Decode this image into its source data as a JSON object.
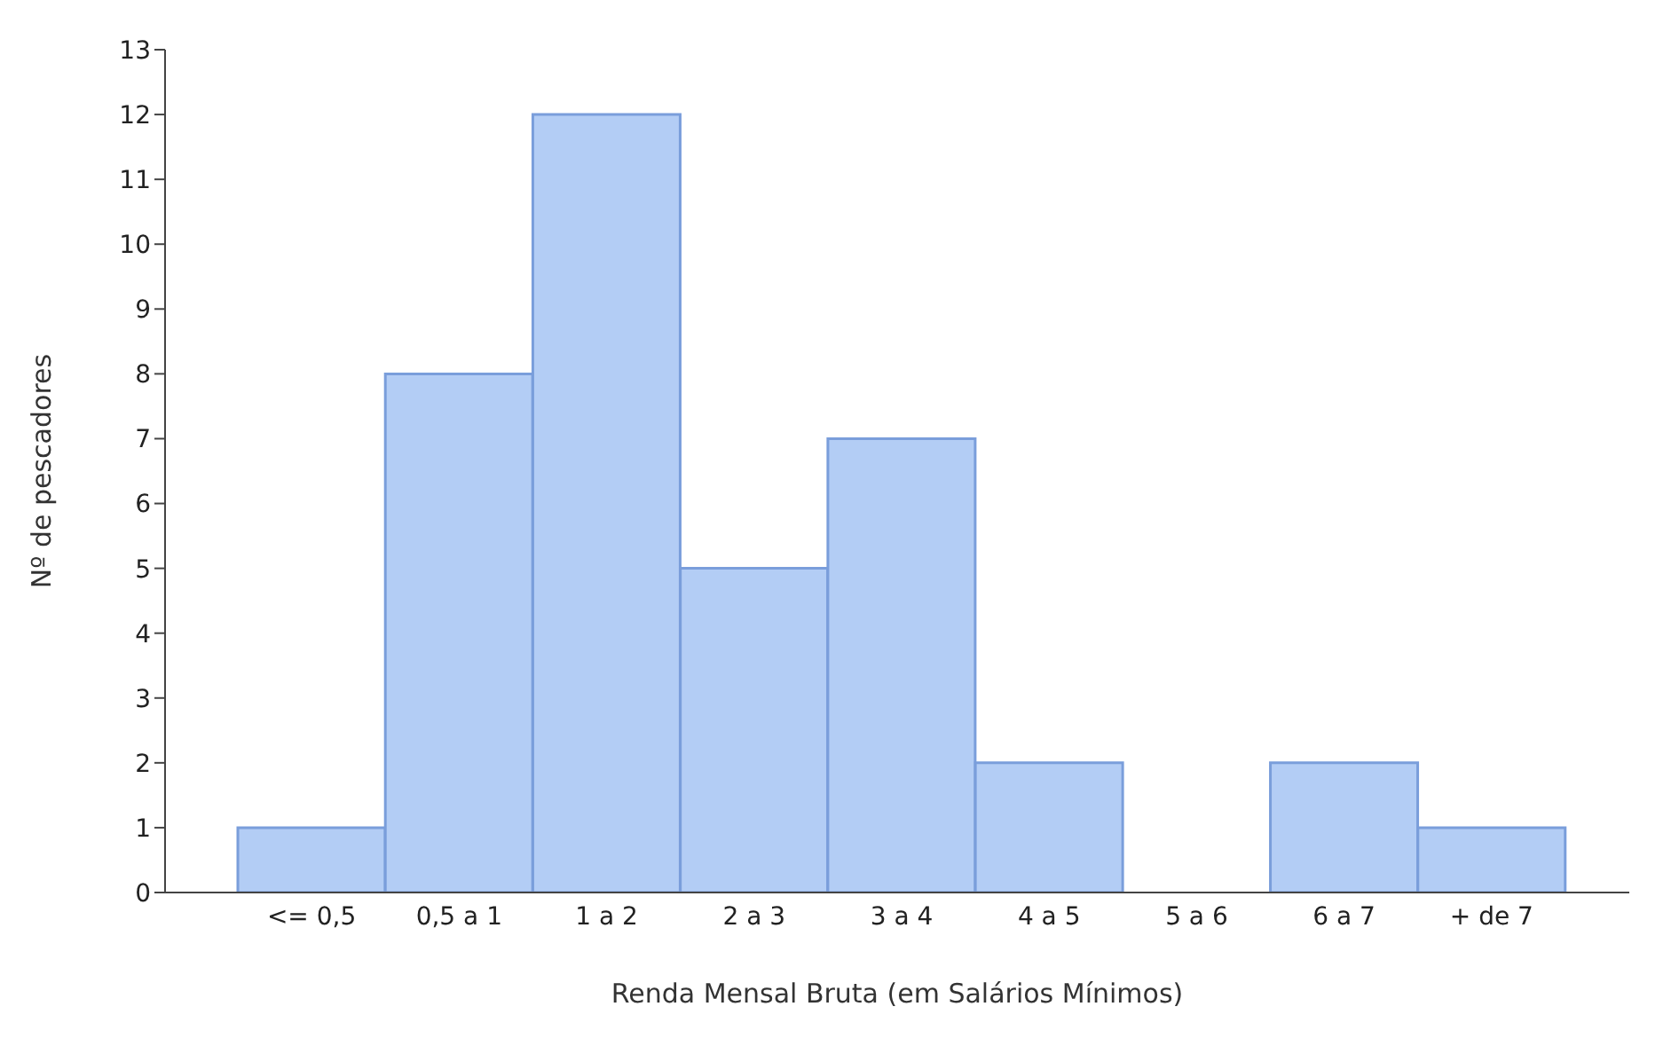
{
  "chart_data": {
    "type": "bar",
    "xlabel": "Renda Mensal Bruta (em Salários Mínimos)",
    "ylabel": "Nº de pescadores",
    "categories": [
      "<= 0,5",
      "0,5 a 1",
      "1 a 2",
      "2 a 3",
      "3 a 4",
      "4 a 5",
      "5 a 6",
      "6 a 7",
      "+ de 7"
    ],
    "values": [
      1,
      8,
      12,
      5,
      7,
      2,
      0,
      2,
      1
    ],
    "color": "#b3cdf5",
    "ylim": [
      0,
      13
    ],
    "yticks": [
      0,
      1,
      2,
      3,
      4,
      5,
      6,
      7,
      8,
      9,
      10,
      11,
      12,
      13
    ],
    "grid": false,
    "legend": false
  }
}
